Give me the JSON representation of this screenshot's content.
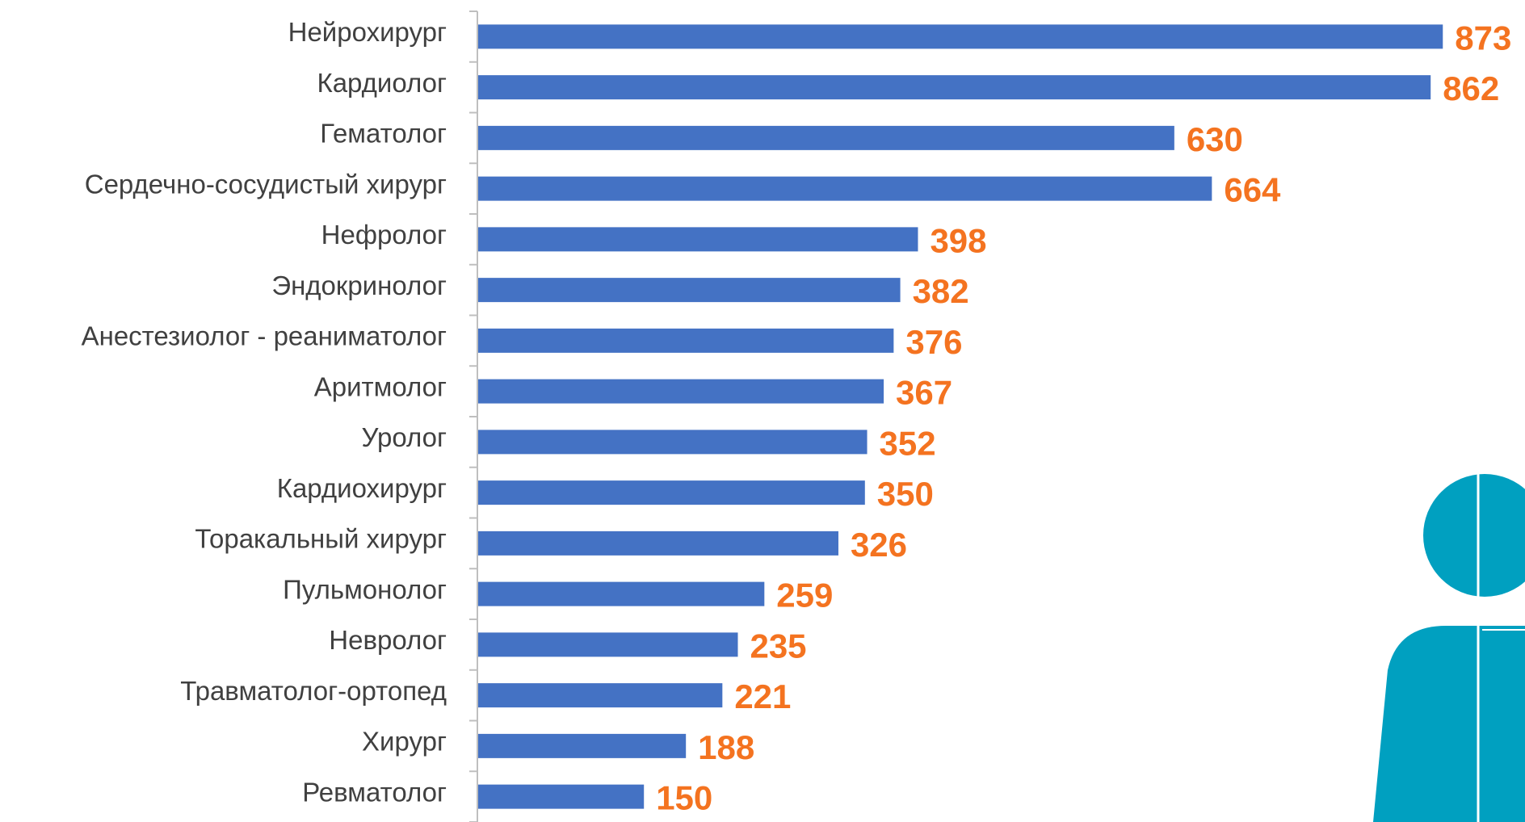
{
  "chart_data": {
    "type": "bar",
    "orientation": "horizontal",
    "categories": [
      "Нейрохирург",
      "Кардиолог",
      "Гематолог",
      "Сердечно-сосудистый хирург",
      "Нефролог",
      "Эндокринолог",
      "Анестезиолог - реаниматолог",
      "Аритмолог",
      "Уролог",
      "Кардиохирург",
      "Торакальный хирург",
      "Пульмонолог",
      "Невролог",
      "Травматолог-ортопед",
      "Хирург",
      "Ревматолог"
    ],
    "values": [
      873,
      862,
      630,
      664,
      398,
      382,
      376,
      367,
      352,
      350,
      326,
      259,
      235,
      221,
      188,
      150
    ],
    "color": "#4472c4",
    "label_color": "#f47320"
  }
}
